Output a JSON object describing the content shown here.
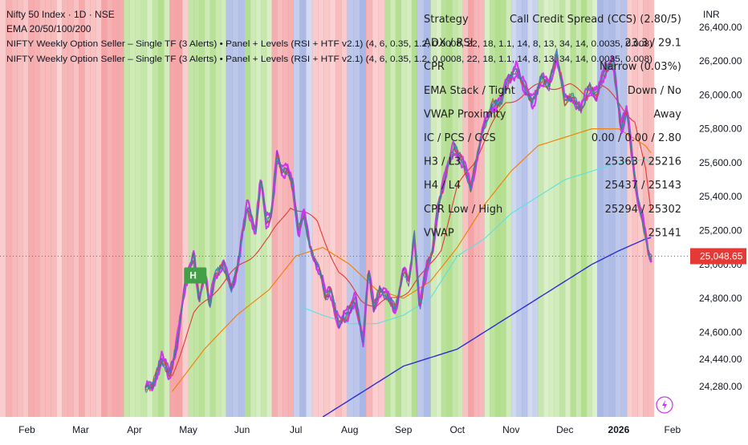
{
  "header": {
    "symbol_line": "Nifty 50 Index · 1D · NSE",
    "ema_line": "EMA 20/50/100/200",
    "indicator_line_1": "NIFTY Weekly Option Seller – Single TF (3 Alerts) • Panel + Levels (RSI + HTF v2.1) (4, 6, 0.35, 1.2, 0.0008, 22, 18, 1.1, 14, 8, 13, 34, 14, 0.0035, 0.008)",
    "indicator_line_2": "NIFTY Weekly Option Seller – Single TF (3 Alerts) • Panel + Levels (RSI + HTF v2.1) (4, 6, 0.35, 1.2, 0.0008, 22, 18, 1.1, 14, 8, 13, 34, 14, 0.0035, 0.008)"
  },
  "panel": {
    "rows": [
      {
        "label": "Strategy",
        "value": "Call Credit Spread (CCS) (2.80/5)"
      },
      {
        "label": "ADX / RSI",
        "value": "23.3 / 29.1"
      },
      {
        "label": "CPR",
        "value": "Narrow (0.03%)"
      },
      {
        "label": "EMA Stack / Tight",
        "value": "Down / No"
      },
      {
        "label": "VWAP Proximity",
        "value": "Away"
      },
      {
        "label": "IC / PCS / CCS",
        "value": "0.00 / 0.00 / 2.80"
      },
      {
        "label": "H3 / L3",
        "value": "25363 / 25216"
      },
      {
        "label": "H4 / L4",
        "value": "25437 / 25143"
      },
      {
        "label": "CPR Low / High",
        "value": "25294 / 25302"
      },
      {
        "label": "VWAP",
        "value": "25141"
      }
    ]
  },
  "badge_text": "H",
  "lightning_icon": "lightning-icon",
  "chart_data": {
    "type": "line",
    "title": "Nifty 50 Index · 1D · NSE",
    "currency": "INR",
    "last_price": 25048.65,
    "last_price_label": "25,048.65",
    "y_ticks": [
      {
        "value": 26400,
        "label": "26,400.00"
      },
      {
        "value": 26200,
        "label": "26,200.00"
      },
      {
        "value": 26000,
        "label": "26,000.00"
      },
      {
        "value": 25800,
        "label": "25,800.00"
      },
      {
        "value": 25600,
        "label": "25,600.00"
      },
      {
        "value": 25400,
        "label": "25,400.00"
      },
      {
        "value": 25200,
        "label": "25,200.00"
      },
      {
        "value": 25000,
        "label": "25,000.00"
      },
      {
        "value": 24800,
        "label": "24,800.00"
      },
      {
        "value": 24600,
        "label": "24,600.00"
      },
      {
        "value": 24440,
        "label": "24,440.00"
      },
      {
        "value": 24280,
        "label": "24,280.00"
      }
    ],
    "ylim": [
      24100,
      26560
    ],
    "x_ticks": [
      "Feb",
      "Mar",
      "Apr",
      "May",
      "Jun",
      "Jul",
      "Aug",
      "Sep",
      "Oct",
      "Nov",
      "Dec",
      "2026",
      "Feb"
    ],
    "x_tick_positions": [
      0.5,
      1.5,
      2.5,
      3.5,
      4.5,
      5.5,
      6.5,
      7.5,
      8.5,
      9.5,
      10.5,
      11.5,
      12.5
    ],
    "xlim": [
      0,
      12.8
    ],
    "background_regimes": [
      {
        "start": 0.0,
        "end": 2.3,
        "regime": "bearish"
      },
      {
        "start": 2.3,
        "end": 3.15,
        "regime": "bullish"
      },
      {
        "start": 3.15,
        "end": 3.5,
        "regime": "bearish"
      },
      {
        "start": 3.5,
        "end": 4.2,
        "regime": "bullish"
      },
      {
        "start": 4.2,
        "end": 4.55,
        "regime": "neutral"
      },
      {
        "start": 4.55,
        "end": 5.05,
        "regime": "bullish"
      },
      {
        "start": 5.05,
        "end": 5.45,
        "regime": "bearish"
      },
      {
        "start": 5.45,
        "end": 5.8,
        "regime": "neutral"
      },
      {
        "start": 5.8,
        "end": 6.45,
        "regime": "bearish"
      },
      {
        "start": 6.45,
        "end": 6.8,
        "regime": "neutral"
      },
      {
        "start": 6.8,
        "end": 7.15,
        "regime": "bearish"
      },
      {
        "start": 7.15,
        "end": 7.75,
        "regime": "bullish"
      },
      {
        "start": 7.75,
        "end": 8.0,
        "regime": "neutral"
      },
      {
        "start": 8.0,
        "end": 8.6,
        "regime": "bullish"
      },
      {
        "start": 8.6,
        "end": 9.0,
        "regime": "bearish"
      },
      {
        "start": 9.0,
        "end": 9.5,
        "regime": "bullish"
      },
      {
        "start": 9.5,
        "end": 10.0,
        "regime": "neutral"
      },
      {
        "start": 10.0,
        "end": 11.1,
        "regime": "bullish"
      },
      {
        "start": 11.1,
        "end": 11.65,
        "regime": "neutral"
      },
      {
        "start": 11.65,
        "end": 12.15,
        "regime": "bearish"
      }
    ],
    "series": [
      {
        "role": "price",
        "x": [
          2.7,
          2.85,
          3.0,
          3.15,
          3.3,
          3.45,
          3.5,
          3.6,
          3.7,
          3.8,
          3.9,
          4.0,
          4.15,
          4.3,
          4.45,
          4.6,
          4.75,
          4.85,
          4.95,
          5.05,
          5.15,
          5.25,
          5.35,
          5.45,
          5.55,
          5.65,
          5.75,
          5.85,
          5.95,
          6.05,
          6.15,
          6.3,
          6.45,
          6.6,
          6.75,
          6.85,
          6.95,
          7.05,
          7.2,
          7.35,
          7.5,
          7.6,
          7.7,
          7.8,
          7.95,
          8.05,
          8.15,
          8.3,
          8.45,
          8.6,
          8.75,
          8.9,
          9.0,
          9.15,
          9.3,
          9.45,
          9.6,
          9.75,
          9.9,
          10.05,
          10.2,
          10.35,
          10.5,
          10.65,
          10.8,
          10.95,
          11.1,
          11.25,
          11.4,
          11.55,
          11.65,
          11.75,
          11.85,
          11.95,
          12.05,
          12.12
        ],
        "values": [
          24250,
          24300,
          24440,
          24350,
          24550,
          24900,
          24950,
          25050,
          24800,
          24950,
          24750,
          24950,
          25000,
          24850,
          25050,
          25350,
          25200,
          25500,
          25250,
          25300,
          25650,
          25550,
          25550,
          25450,
          25200,
          25300,
          25100,
          25050,
          24950,
          24800,
          24850,
          24650,
          24700,
          24800,
          24550,
          24950,
          24750,
          24850,
          24800,
          24750,
          24950,
          24900,
          25200,
          24750,
          25000,
          25100,
          25350,
          25550,
          25700,
          25600,
          25450,
          25700,
          25800,
          25950,
          25950,
          26100,
          26150,
          26050,
          25950,
          26100,
          26050,
          26250,
          25950,
          26000,
          25900,
          26050,
          26000,
          26150,
          26200,
          25800,
          25900,
          25650,
          25400,
          25250,
          25050,
          25048
        ]
      },
      {
        "role": "ema20",
        "name": "EMA 20",
        "x": [
          3.2,
          3.6,
          4.0,
          4.5,
          5.0,
          5.4,
          5.9,
          6.3,
          6.7,
          7.0,
          7.3,
          7.6,
          7.9,
          8.2,
          8.5,
          8.8,
          9.1,
          9.4,
          9.7,
          10.0,
          10.3,
          10.6,
          10.9,
          11.2,
          11.5,
          11.8,
          12.0,
          12.12
        ],
        "values": [
          24350,
          24700,
          24850,
          25000,
          25150,
          25350,
          25250,
          24950,
          24800,
          24750,
          24800,
          24850,
          24950,
          25100,
          25450,
          25600,
          25800,
          25950,
          26000,
          26050,
          26050,
          26050,
          26000,
          26050,
          25950,
          25850,
          25550,
          25250
        ]
      },
      {
        "role": "ema50",
        "name": "EMA 50",
        "x": [
          3.2,
          3.8,
          4.4,
          5.0,
          5.5,
          6.0,
          6.5,
          7.0,
          7.5,
          8.0,
          8.5,
          9.0,
          9.5,
          10.0,
          10.5,
          11.0,
          11.5,
          12.0,
          12.12
        ],
        "values": [
          24250,
          24500,
          24700,
          24850,
          25050,
          25100,
          25000,
          24850,
          24800,
          24900,
          25100,
          25350,
          25550,
          25700,
          25750,
          25800,
          25800,
          25700,
          25650
        ]
      },
      {
        "role": "ema100",
        "name": "EMA 100",
        "x": [
          5.6,
          6.0,
          6.5,
          7.0,
          7.5,
          8.0,
          8.5,
          9.0,
          9.5,
          10.0,
          10.5,
          11.0,
          11.5,
          12.0,
          12.12
        ],
        "values": [
          24750,
          24700,
          24650,
          24650,
          24700,
          24800,
          25050,
          25150,
          25300,
          25400,
          25500,
          25550,
          25600,
          25620,
          25600
        ]
      },
      {
        "role": "ema200",
        "name": "EMA 200",
        "x": [
          6.0,
          6.5,
          7.0,
          7.5,
          8.0,
          8.5,
          9.0,
          9.5,
          10.0,
          10.5,
          11.0,
          11.5,
          12.0,
          12.12
        ],
        "values": [
          24100,
          24200,
          24300,
          24400,
          24450,
          24500,
          24600,
          24700,
          24800,
          24900,
          25000,
          25080,
          25150,
          25160
        ]
      }
    ]
  },
  "colors": {
    "bearish_bg": "#f4a3a5",
    "bullish_bg": "#b3de8f",
    "neutral_bg": "#a9b7e4",
    "price_band": "#cc33ee",
    "price_core": "#2e8b57",
    "ema20": "#e53935",
    "ema50": "#f57c00",
    "ema100": "#5ce0e0",
    "ema200": "#2b2fd6",
    "last_price_bg": "#e53935",
    "badge_bg": "#43a047"
  }
}
